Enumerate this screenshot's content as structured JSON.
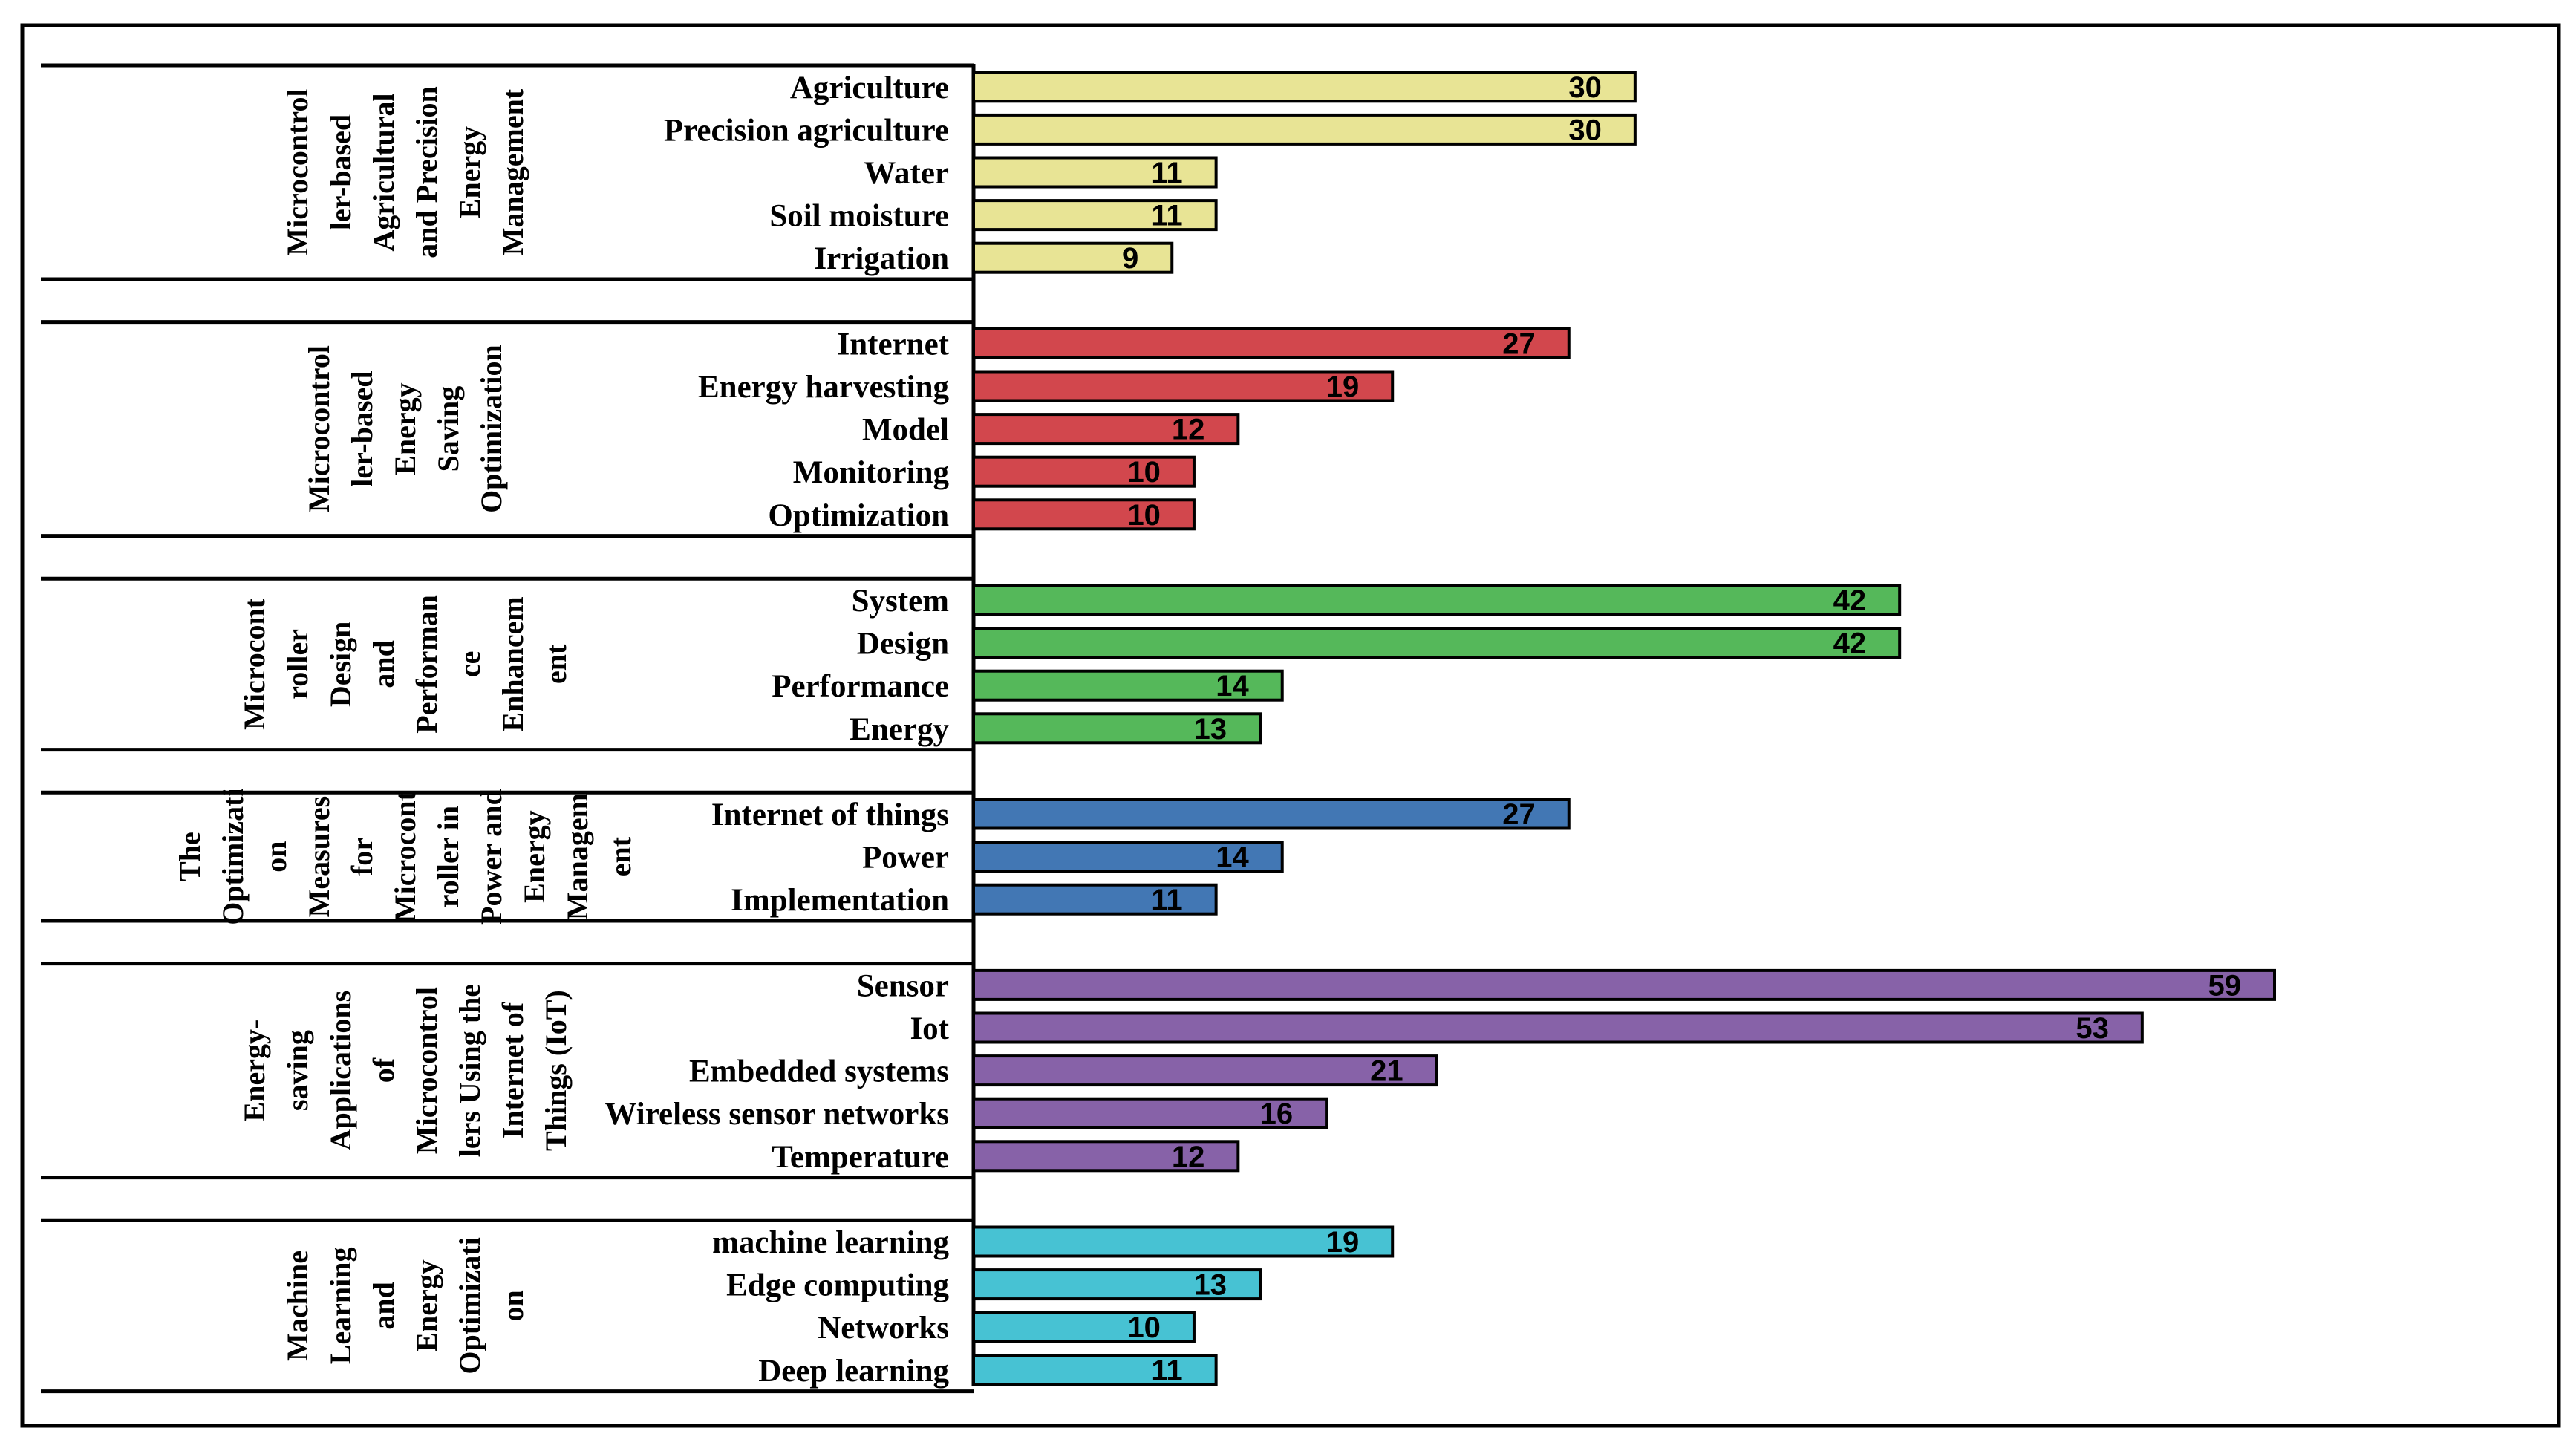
{
  "chart_data": {
    "type": "bar",
    "orientation": "horizontal",
    "grid": false,
    "legend": "none",
    "title": "",
    "xlabel": "",
    "ylabel": "",
    "xlim": [
      0,
      59
    ],
    "groups": [
      {
        "name": "Microcontroller-based Agricultural and Precision Energy Management",
        "label_lines": [
          "Microcontrol",
          "ler-based",
          "Agricultural",
          "and Precision",
          "Energy",
          "Management"
        ],
        "color": "#e8e495",
        "categories": [
          "Agriculture",
          "Precision agriculture",
          "Water",
          "Soil moisture",
          "Irrigation"
        ],
        "values": [
          30,
          30,
          11,
          11,
          9
        ]
      },
      {
        "name": "Microcontroller-based Energy Saving Optimization",
        "label_lines": [
          "Microcontrol",
          "ler-based",
          "Energy",
          "Saving",
          "Optimization"
        ],
        "color": "#d2474d",
        "categories": [
          "Internet",
          "Energy harvesting",
          "Model",
          "Monitoring",
          "Optimization"
        ],
        "values": [
          27,
          19,
          12,
          10,
          10
        ]
      },
      {
        "name": "Microcontroller Design and Performance Enhancement",
        "label_lines": [
          "Microcont",
          "roller",
          "Design",
          "and",
          "Performan",
          "ce",
          "Enhancem",
          "ent"
        ],
        "color": "#55b85a",
        "categories": [
          "System",
          "Design",
          "Performance",
          "Energy"
        ],
        "values": [
          42,
          42,
          14,
          13
        ]
      },
      {
        "name": "The Optimization Measures for Microcontroller in Power and Energy Management",
        "label_lines": [
          "The",
          "Optimizati",
          "on",
          "Measures",
          "for",
          "Microcont",
          "roller in",
          "Power and",
          "Energy",
          "Managem",
          "ent"
        ],
        "color": "#4277b4",
        "categories": [
          "Internet of things",
          "Power",
          "Implementation"
        ],
        "values": [
          27,
          14,
          11
        ]
      },
      {
        "name": "Energy-saving Applications of Microcontrollers Using the Internet of Things (IoT)",
        "label_lines": [
          "Energy-",
          "saving",
          "Applications",
          "of",
          "Microcontrol",
          "lers Using the",
          "Internet of",
          "Things (IoT)"
        ],
        "color": "#8762a8",
        "categories": [
          "Sensor",
          "Iot",
          "Embedded systems",
          "Wireless sensor networks",
          "Temperature"
        ],
        "values": [
          59,
          53,
          21,
          16,
          12
        ]
      },
      {
        "name": "Machine Learning and Energy Optimization",
        "label_lines": [
          "Machine",
          "Learning",
          "and",
          "Energy",
          "Optimizati",
          "on"
        ],
        "color": "#47c2d3",
        "categories": [
          "machine learning",
          "Edge computing",
          "Networks",
          "Deep learning"
        ],
        "values": [
          19,
          13,
          10,
          11
        ]
      }
    ]
  }
}
